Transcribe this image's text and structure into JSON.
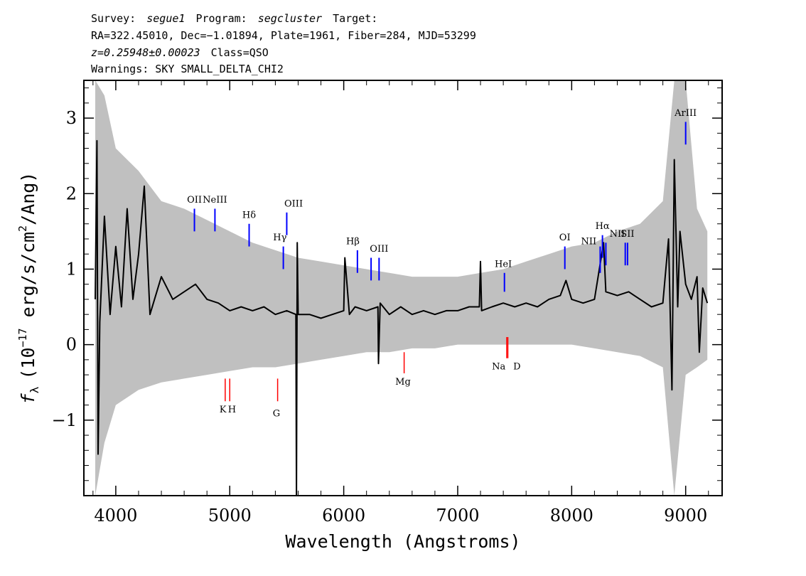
{
  "header": {
    "line1": {
      "survey_label": "Survey:",
      "survey": "segue1",
      "program_label": "Program:",
      "program": "segcluster",
      "target_label": "Target:"
    },
    "line2": "RA=322.45010, Dec=−1.01894, Plate=1961, Fiber=284, MJD=53299",
    "line3": {
      "z": "z=0.25948±0.00023",
      "class": "Class=QSO"
    },
    "line4": "Warnings: SKY SMALL_DELTA_CHI2"
  },
  "chart_data": {
    "type": "line",
    "xlabel": "Wavelength (Angstroms)",
    "ylabel": "f_λ (10^-17 erg/s/cm^2/Ang)",
    "ylabel_parts": {
      "sym": "f",
      "sub": "λ",
      "pre": "(10",
      "exp1": "−17",
      "mid": " erg/s/cm",
      "exp2": "2",
      "post": "/Ang)"
    },
    "xlim": [
      3720,
      9320
    ],
    "ylim": [
      -2.0,
      3.5
    ],
    "xticks": [
      4000,
      5000,
      6000,
      7000,
      8000,
      9000
    ],
    "xtick_labels": [
      "4000",
      "5000",
      "6000",
      "7000",
      "8000",
      "9000"
    ],
    "yticks": [
      -1,
      0,
      1,
      2,
      3
    ],
    "ytick_labels": [
      "−1",
      "0",
      "1",
      "2",
      "3"
    ],
    "grid": false,
    "series": [
      {
        "role": "flux",
        "color": "#000000",
        "points": [
          [
            3820,
            0.6
          ],
          [
            3835,
            2.7
          ],
          [
            3845,
            -1.45
          ],
          [
            3860,
            0.3
          ],
          [
            3900,
            1.7
          ],
          [
            3950,
            0.4
          ],
          [
            4000,
            1.3
          ],
          [
            4050,
            0.5
          ],
          [
            4100,
            1.8
          ],
          [
            4150,
            0.6
          ],
          [
            4200,
            1.2
          ],
          [
            4250,
            2.1
          ],
          [
            4300,
            0.4
          ],
          [
            4400,
            0.9
          ],
          [
            4500,
            0.6
          ],
          [
            4600,
            0.7
          ],
          [
            4700,
            0.8
          ],
          [
            4800,
            0.6
          ],
          [
            4900,
            0.55
          ],
          [
            5000,
            0.45
          ],
          [
            5100,
            0.5
          ],
          [
            5200,
            0.45
          ],
          [
            5300,
            0.5
          ],
          [
            5400,
            0.4
          ],
          [
            5500,
            0.45
          ],
          [
            5580,
            0.4
          ],
          [
            5585,
            -2.0
          ],
          [
            5592,
            1.35
          ],
          [
            5600,
            0.4
          ],
          [
            5700,
            0.4
          ],
          [
            5800,
            0.35
          ],
          [
            5900,
            0.4
          ],
          [
            6000,
            0.45
          ],
          [
            6010,
            1.15
          ],
          [
            6050,
            0.4
          ],
          [
            6100,
            0.5
          ],
          [
            6200,
            0.45
          ],
          [
            6300,
            0.5
          ],
          [
            6305,
            -0.25
          ],
          [
            6320,
            0.55
          ],
          [
            6400,
            0.4
          ],
          [
            6500,
            0.5
          ],
          [
            6600,
            0.4
          ],
          [
            6700,
            0.45
          ],
          [
            6800,
            0.4
          ],
          [
            6900,
            0.45
          ],
          [
            7000,
            0.45
          ],
          [
            7100,
            0.5
          ],
          [
            7190,
            0.5
          ],
          [
            7200,
            1.1
          ],
          [
            7210,
            0.45
          ],
          [
            7300,
            0.5
          ],
          [
            7400,
            0.55
          ],
          [
            7500,
            0.5
          ],
          [
            7600,
            0.55
          ],
          [
            7700,
            0.5
          ],
          [
            7800,
            0.6
          ],
          [
            7900,
            0.65
          ],
          [
            7950,
            0.85
          ],
          [
            8000,
            0.6
          ],
          [
            8100,
            0.55
          ],
          [
            8200,
            0.6
          ],
          [
            8280,
            1.35
          ],
          [
            8300,
            0.7
          ],
          [
            8400,
            0.65
          ],
          [
            8500,
            0.7
          ],
          [
            8600,
            0.6
          ],
          [
            8700,
            0.5
          ],
          [
            8800,
            0.55
          ],
          [
            8850,
            1.4
          ],
          [
            8880,
            -0.6
          ],
          [
            8900,
            2.45
          ],
          [
            8930,
            0.5
          ],
          [
            8950,
            1.5
          ],
          [
            9000,
            0.8
          ],
          [
            9050,
            0.6
          ],
          [
            9100,
            0.9
          ],
          [
            9120,
            -0.1
          ],
          [
            9150,
            0.75
          ],
          [
            9190,
            0.55
          ]
        ]
      },
      {
        "role": "flux uncertainty",
        "color": "#c0c0c0",
        "envelope": [
          [
            3820,
            -2.0,
            3.5
          ],
          [
            3900,
            -1.3,
            3.3
          ],
          [
            4000,
            -0.8,
            2.6
          ],
          [
            4200,
            -0.6,
            2.3
          ],
          [
            4400,
            -0.5,
            1.9
          ],
          [
            4600,
            -0.45,
            1.8
          ],
          [
            4800,
            -0.4,
            1.65
          ],
          [
            5000,
            -0.35,
            1.5
          ],
          [
            5200,
            -0.3,
            1.35
          ],
          [
            5400,
            -0.3,
            1.25
          ],
          [
            5600,
            -0.25,
            1.15
          ],
          [
            5800,
            -0.2,
            1.1
          ],
          [
            6000,
            -0.15,
            1.05
          ],
          [
            6200,
            -0.1,
            1.0
          ],
          [
            6400,
            -0.1,
            0.95
          ],
          [
            6600,
            -0.05,
            0.9
          ],
          [
            6800,
            -0.05,
            0.9
          ],
          [
            7000,
            0.0,
            0.9
          ],
          [
            7200,
            0.0,
            0.95
          ],
          [
            7400,
            0.0,
            1.0
          ],
          [
            7600,
            0.0,
            1.1
          ],
          [
            7800,
            0.0,
            1.2
          ],
          [
            8000,
            0.0,
            1.3
          ],
          [
            8200,
            -0.05,
            1.35
          ],
          [
            8400,
            -0.1,
            1.5
          ],
          [
            8600,
            -0.15,
            1.6
          ],
          [
            8800,
            -0.3,
            1.9
          ],
          [
            8900,
            -2.0,
            3.5
          ],
          [
            9000,
            -0.4,
            3.5
          ],
          [
            9100,
            -0.3,
            1.8
          ],
          [
            9190,
            -0.2,
            1.5
          ]
        ]
      }
    ],
    "emission_lines": [
      {
        "label": "OII",
        "x": 4690,
        "y_from": 1.5,
        "y_to": 1.8
      },
      {
        "label": "NeIII",
        "x": 4870,
        "y_from": 1.5,
        "y_to": 1.8
      },
      {
        "label": "Hδ",
        "x": 5170,
        "y_from": 1.3,
        "y_to": 1.6
      },
      {
        "label": "Hγ",
        "x": 5470,
        "y_from": 1.0,
        "y_to": 1.3
      },
      {
        "label": "OIII",
        "x": 5500,
        "y_from": 1.45,
        "y_to": 1.75
      },
      {
        "label": "Hβ",
        "x": 6120,
        "y_from": 0.95,
        "y_to": 1.25
      },
      {
        "label": "OIII",
        "x": 6240,
        "y_from": 0.85,
        "y_to": 1.15
      },
      {
        "label": "OIII",
        "x": 6310,
        "y_from": 0.85,
        "y_to": 1.15
      },
      {
        "label": "HeI",
        "x": 7410,
        "y_from": 0.7,
        "y_to": 0.95
      },
      {
        "label": "OI",
        "x": 7940,
        "y_from": 1.0,
        "y_to": 1.3
      },
      {
        "label": "NII",
        "x": 8250,
        "y_from": 0.95,
        "y_to": 1.3
      },
      {
        "label": "Hα",
        "x": 8270,
        "y_from": 1.15,
        "y_to": 1.45
      },
      {
        "label": "NII",
        "x": 8300,
        "y_from": 1.05,
        "y_to": 1.35
      },
      {
        "label": "SII",
        "x": 8470,
        "y_from": 1.05,
        "y_to": 1.35
      },
      {
        "label": "SII",
        "x": 8490,
        "y_from": 1.05,
        "y_to": 1.35
      },
      {
        "label": "ArIII",
        "x": 9000,
        "y_from": 2.65,
        "y_to": 2.95
      }
    ],
    "emission_labels": [
      {
        "text": "OII",
        "x": 4690,
        "y": 1.88,
        "anchor": "middle"
      },
      {
        "text": "NeIII",
        "x": 4870,
        "y": 1.88,
        "anchor": "middle"
      },
      {
        "text": "Hδ",
        "x": 5170,
        "y": 1.68,
        "anchor": "middle"
      },
      {
        "text": "Hγ",
        "x": 5440,
        "y": 1.38,
        "anchor": "middle"
      },
      {
        "text": "OIII",
        "x": 5560,
        "y": 1.83,
        "anchor": "middle"
      },
      {
        "text": "Hβ",
        "x": 6080,
        "y": 1.33,
        "anchor": "middle"
      },
      {
        "text": "OIII",
        "x": 6310,
        "y": 1.23,
        "anchor": "middle"
      },
      {
        "text": "HeI",
        "x": 7400,
        "y": 1.03,
        "anchor": "middle"
      },
      {
        "text": "OI",
        "x": 7940,
        "y": 1.38,
        "anchor": "middle"
      },
      {
        "text": "NII",
        "x": 8150,
        "y": 1.33,
        "anchor": "middle"
      },
      {
        "text": "Hα",
        "x": 8270,
        "y": 1.53,
        "anchor": "middle"
      },
      {
        "text": "NII",
        "x": 8400,
        "y": 1.43,
        "anchor": "middle"
      },
      {
        "text": "SII",
        "x": 8490,
        "y": 1.43,
        "anchor": "middle"
      },
      {
        "text": "ArIII",
        "x": 9000,
        "y": 3.03,
        "anchor": "middle"
      }
    ],
    "absorption_lines": [
      {
        "label": "K",
        "x": 4960,
        "y_from": -0.75,
        "y_to": -0.45
      },
      {
        "label": "H",
        "x": 5000,
        "y_from": -0.75,
        "y_to": -0.45
      },
      {
        "label": "G",
        "x": 5420,
        "y_from": -0.75,
        "y_to": -0.45
      },
      {
        "label": "Mg",
        "x": 6530,
        "y_from": -0.38,
        "y_to": -0.1
      },
      {
        "label": "Na",
        "x": 7430,
        "y_from": -0.18,
        "y_to": 0.1
      },
      {
        "label": "D",
        "x": 7440,
        "y_from": -0.18,
        "y_to": 0.1
      }
    ],
    "absorption_labels": [
      {
        "text": "K",
        "x": 4940,
        "y": -0.9
      },
      {
        "text": "H",
        "x": 5020,
        "y": -0.9
      },
      {
        "text": "G",
        "x": 5410,
        "y": -0.95
      },
      {
        "text": "Mg",
        "x": 6520,
        "y": -0.53
      },
      {
        "text": "Na",
        "x": 7360,
        "y": -0.33
      },
      {
        "text": "D",
        "x": 7520,
        "y": -0.33
      }
    ],
    "emission_color": "#0000ff",
    "absorption_color": "#ff0000"
  }
}
